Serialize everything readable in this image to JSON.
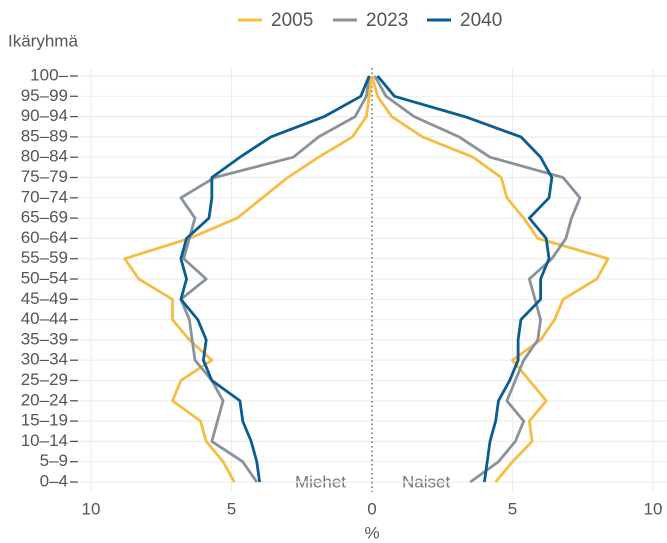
{
  "chart_data": {
    "type": "pyramid-line",
    "y_label": "Ikäryhmä",
    "x_label": "%",
    "annotations": [
      "Miehet",
      "Naiset"
    ],
    "categories": [
      "0–4",
      "5–9",
      "10–14",
      "15–19",
      "20–24",
      "25–29",
      "30–34",
      "35–39",
      "40–44",
      "45–49",
      "50–54",
      "55–59",
      "60–64",
      "65–69",
      "70–74",
      "75–79",
      "80–84",
      "85–89",
      "90–94",
      "95–99",
      "100–"
    ],
    "xlim": [
      -10,
      10
    ],
    "xticks": [
      {
        "value": -10,
        "label": "10"
      },
      {
        "value": -5,
        "label": "5"
      },
      0,
      5,
      10
    ],
    "grid": true,
    "series": [
      {
        "name": "2005",
        "color": "#f5bd42",
        "men": [
          -4.9,
          -5.3,
          -5.9,
          -6.1,
          -7.1,
          -6.8,
          -5.7,
          -6.5,
          -7.1,
          -7.1,
          -8.3,
          -8.8,
          -6.5,
          -4.8,
          -3.9,
          -3.0,
          -1.9,
          -0.7,
          -0.2,
          -0.1,
          0
        ],
        "women": [
          4.4,
          5.0,
          5.7,
          5.6,
          6.2,
          5.6,
          5.0,
          6.0,
          6.5,
          6.8,
          8.0,
          8.4,
          5.9,
          5.4,
          4.8,
          4.6,
          3.6,
          1.8,
          0.7,
          0.2,
          0
        ]
      },
      {
        "name": "2023",
        "color": "#8a929b",
        "men": [
          -4.1,
          -4.6,
          -5.7,
          -5.5,
          -5.3,
          -5.7,
          -6.3,
          -6.4,
          -6.5,
          -6.8,
          -5.9,
          -6.7,
          -6.5,
          -6.3,
          -6.8,
          -5.6,
          -2.8,
          -1.9,
          -0.6,
          -0.2,
          -0.1
        ],
        "women": [
          3.5,
          4.5,
          5.1,
          5.4,
          4.8,
          5.1,
          5.4,
          5.9,
          6.0,
          5.8,
          5.6,
          6.4,
          6.9,
          7.1,
          7.4,
          6.8,
          4.2,
          3.1,
          1.5,
          0.5,
          0.1
        ]
      },
      {
        "name": "2040",
        "color": "#0a5d91",
        "men": [
          -4.0,
          -4.1,
          -4.3,
          -4.6,
          -4.7,
          -5.7,
          -6.0,
          -5.9,
          -6.2,
          -6.8,
          -6.6,
          -6.8,
          -6.6,
          -5.8,
          -5.7,
          -5.7,
          -4.7,
          -3.6,
          -1.7,
          -0.4,
          -0.1
        ],
        "women": [
          4.0,
          4.1,
          4.2,
          4.4,
          4.5,
          4.9,
          5.2,
          5.2,
          5.3,
          6.0,
          6.0,
          6.3,
          6.2,
          5.6,
          6.3,
          6.4,
          6.0,
          5.3,
          3.3,
          0.8,
          0.2
        ]
      }
    ]
  }
}
